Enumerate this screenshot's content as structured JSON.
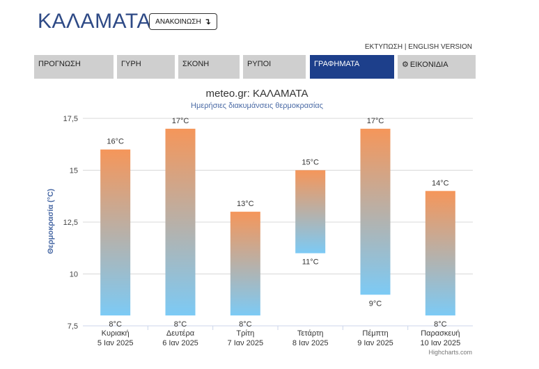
{
  "header": {
    "title": "ΚΑΛΑΜΑΤΑ",
    "announce_label": "ΑΝΑΚΟΙΝΩΣΗ",
    "announce_icon": "arrow-down-icon",
    "links": {
      "print": "ΕΚΤΥΠΩΣΗ",
      "separator": "|",
      "english": "ENGLISH VERSION"
    }
  },
  "tabs": [
    {
      "label": "ΠΡΟΓΝΩΣΗ",
      "active": false
    },
    {
      "label": "ΓΥΡΗ",
      "active": false
    },
    {
      "label": "ΣΚΟΝΗ",
      "active": false
    },
    {
      "label": "ΡΥΠΟΙ",
      "active": false
    },
    {
      "label": "ΓΡΑΦΗΜΑΤΑ",
      "active": true
    },
    {
      "label": "ΕΙΚΟΝΙΔΙΑ",
      "active": false,
      "icon": "gear-icon"
    }
  ],
  "chart_data": {
    "type": "bar",
    "title": "meteo.gr: ΚΑΛΑΜΑΤΑ",
    "subtitle": "Ημερήσιες διακυμάνσεις θερμοκρασίας",
    "ylabel": "Θερμοκρασία (°C)",
    "ylim": [
      7.5,
      17.5
    ],
    "yticks": [
      "7,5",
      "10",
      "12,5",
      "15",
      "17,5"
    ],
    "categories": [
      {
        "day": "Κυριακή",
        "date": "5 Ιαν 2025"
      },
      {
        "day": "Δευτέρα",
        "date": "6 Ιαν 2025"
      },
      {
        "day": "Τρίτη",
        "date": "7 Ιαν 2025"
      },
      {
        "day": "Τετάρτη",
        "date": "8 Ιαν 2025"
      },
      {
        "day": "Πέμπτη",
        "date": "9 Ιαν 2025"
      },
      {
        "day": "Παρασκευή",
        "date": "10 Ιαν 2025"
      }
    ],
    "series": [
      {
        "low": 8,
        "high": 16,
        "low_label": "8°C",
        "high_label": "16°C"
      },
      {
        "low": 8,
        "high": 17,
        "low_label": "8°C",
        "high_label": "17°C"
      },
      {
        "low": 8,
        "high": 13,
        "low_label": "8°C",
        "high_label": "13°C"
      },
      {
        "low": 11,
        "high": 15,
        "low_label": "11°C",
        "high_label": "15°C"
      },
      {
        "low": 9,
        "high": 17,
        "low_label": "9°C",
        "high_label": "17°C"
      },
      {
        "low": 8,
        "high": 14,
        "low_label": "8°C",
        "high_label": "14°C"
      }
    ],
    "colors": {
      "warm": "#f5965a",
      "cold": "#7ccaf5",
      "grid": "#d8d8d8"
    },
    "grid": true,
    "credits": "Highcharts.com"
  }
}
